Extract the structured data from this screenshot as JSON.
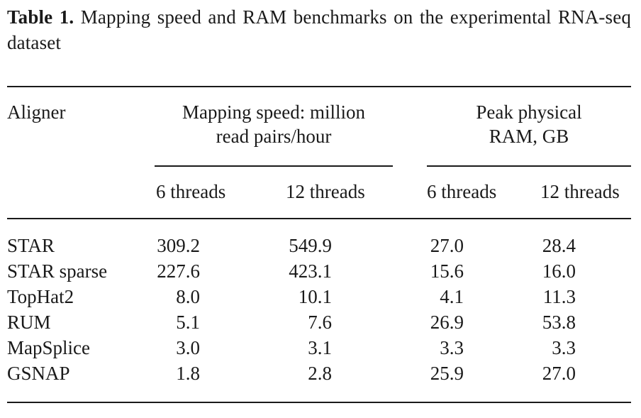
{
  "caption": {
    "label": "Table 1.",
    "text": "Mapping speed and RAM benchmarks on the experimental RNA-seq dataset"
  },
  "header": {
    "aligner": "Aligner",
    "speed_line1": "Mapping speed: million",
    "speed_line2": "read pairs/hour",
    "ram_line1": "Peak physical",
    "ram_line2": "RAM, GB",
    "sub": [
      "6 threads",
      "12 threads",
      "6 threads",
      "12 threads"
    ]
  },
  "rows": [
    {
      "aligner": "STAR",
      "speed6": "309.2",
      "speed12": "549.9",
      "ram6": "27.0",
      "ram12": "28.4"
    },
    {
      "aligner": "STAR sparse",
      "speed6": "227.6",
      "speed12": "423.1",
      "ram6": "15.6",
      "ram12": "16.0"
    },
    {
      "aligner": "TopHat2",
      "speed6": "8.0",
      "speed12": "10.1",
      "ram6": "4.1",
      "ram12": "11.3"
    },
    {
      "aligner": "RUM",
      "speed6": "5.1",
      "speed12": "7.6",
      "ram6": "26.9",
      "ram12": "53.8"
    },
    {
      "aligner": "MapSplice",
      "speed6": "3.0",
      "speed12": "3.1",
      "ram6": "3.3",
      "ram12": "3.3"
    },
    {
      "aligner": "GSNAP",
      "speed6": "1.8",
      "speed12": "2.8",
      "ram6": "25.9",
      "ram12": "27.0"
    }
  ]
}
